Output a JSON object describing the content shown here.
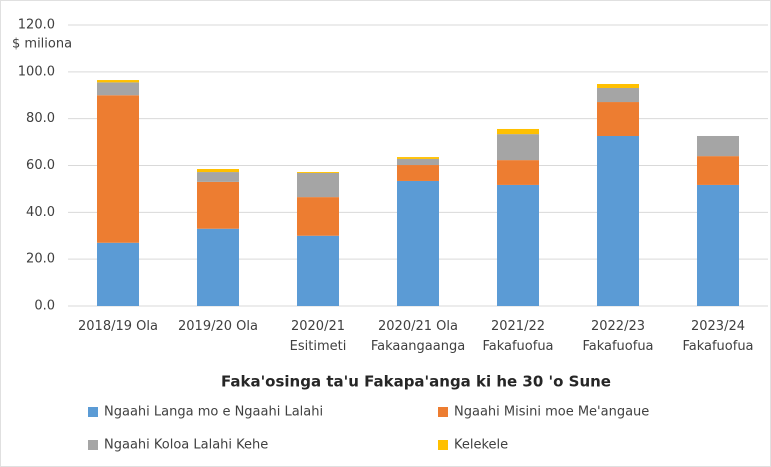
{
  "chart_data": {
    "type": "stacked_bar",
    "title": "Faka'osinga ta'u Fakapa'anga ki he 30 'o Sune",
    "unit_label": "$ miliona",
    "categories": [
      "2018/19 Ola",
      "2019/20 Ola",
      "2020/21\nEsitimeti",
      "2020/21 Ola\nFakaangaanga",
      "2021/22\nFakafuofua",
      "2022/23\nFakafuofua",
      "2023/24\nFakafuofua"
    ],
    "series": [
      {
        "name": "Ngaahi Langa mo e Ngaahi Lalahi",
        "color": "#5b9bd5",
        "values": [
          27,
          33,
          30,
          53.4,
          51.7,
          72.6,
          51.7
        ]
      },
      {
        "name": "Ngaahi Misini moe Me'angaue",
        "color": "#ed7d31",
        "values": [
          63,
          20,
          16.5,
          6.8,
          10.6,
          14.5,
          12.3
        ]
      },
      {
        "name": "Ngaahi Koloa Lalahi Kehe",
        "color": "#a5a5a5",
        "values": [
          5.5,
          4.2,
          10.3,
          2.6,
          11.1,
          6,
          8.6
        ]
      },
      {
        "name": "Kelekele",
        "color": "#ffc000",
        "values": [
          1,
          1.3,
          0.4,
          0.8,
          2.2,
          1.7,
          0
        ]
      }
    ],
    "ylim": [
      0,
      120
    ],
    "yticks": [
      {
        "value": 0,
        "label": "0.0"
      },
      {
        "value": 20,
        "label": "20.0"
      },
      {
        "value": 40,
        "label": "40.0"
      },
      {
        "value": 60,
        "label": "60.0"
      },
      {
        "value": 80,
        "label": "80.0"
      },
      {
        "value": 100,
        "label": "100.0"
      },
      {
        "value": 120,
        "label": "120.0"
      }
    ],
    "grid": true
  }
}
